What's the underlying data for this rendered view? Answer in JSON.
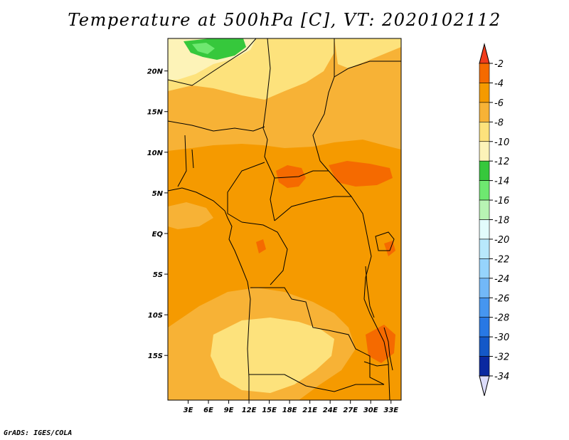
{
  "title": "Temperature at 500hPa [C], VT: 2020102112",
  "footer": "GrADS: IGES/COLA",
  "map": {
    "lon_range": [
      0,
      34.5
    ],
    "lat_range": [
      -20.5,
      24
    ],
    "lat_ticks": [
      {
        "value": 20,
        "label": "20N"
      },
      {
        "value": 15,
        "label": "15N"
      },
      {
        "value": 10,
        "label": "10N"
      },
      {
        "value": 5,
        "label": "5N"
      },
      {
        "value": 0,
        "label": "EQ"
      },
      {
        "value": -5,
        "label": "5S"
      },
      {
        "value": -10,
        "label": "10S"
      },
      {
        "value": -15,
        "label": "15S"
      }
    ],
    "lon_ticks": [
      {
        "value": 3,
        "label": "3E"
      },
      {
        "value": 6,
        "label": "6E"
      },
      {
        "value": 9,
        "label": "9E"
      },
      {
        "value": 12,
        "label": "12E"
      },
      {
        "value": 15,
        "label": "15E"
      },
      {
        "value": 18,
        "label": "18E"
      },
      {
        "value": 21,
        "label": "21E"
      },
      {
        "value": 24,
        "label": "24E"
      },
      {
        "value": 27,
        "label": "27E"
      },
      {
        "value": 30,
        "label": "30E"
      },
      {
        "value": 33,
        "label": "33E"
      }
    ]
  },
  "colorbar": {
    "labels": [
      "-2",
      "-4",
      "-6",
      "-8",
      "-10",
      "-12",
      "-14",
      "-16",
      "-18",
      "-20",
      "-22",
      "-24",
      "-26",
      "-28",
      "-30",
      "-32",
      "-34"
    ],
    "colors": [
      "#f03c1c",
      "#f56a00",
      "#f59a00",
      "#f7b236",
      "#fde27c",
      "#fdf3b8",
      "#36c83c",
      "#6ee870",
      "#b8f4b4",
      "#e2fcfc",
      "#b8e8fc",
      "#96d4fc",
      "#72b8f8",
      "#4696f0",
      "#2878e4",
      "#1458c8",
      "#0a28a0",
      "#0c1470",
      "#dcdcfa"
    ]
  }
}
